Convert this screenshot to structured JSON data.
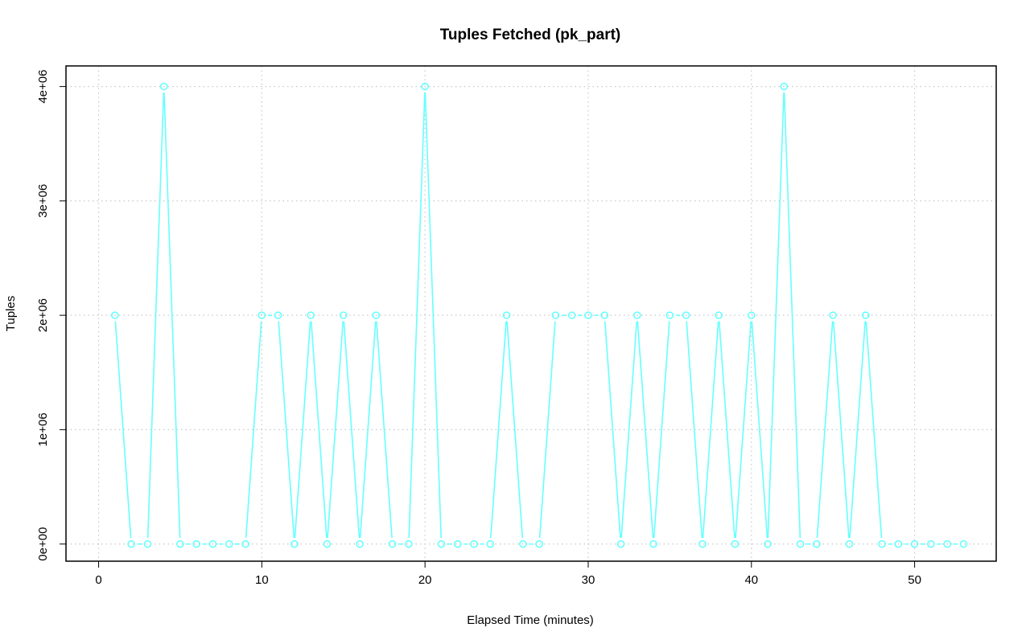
{
  "chart_data": {
    "type": "line",
    "title": "Tuples Fetched (pk_part)",
    "xlabel": "Elapsed Time (minutes)",
    "ylabel": "Tuples",
    "xlim": [
      -2,
      55
    ],
    "ylim": [
      -150000,
      4180000
    ],
    "x_ticks": [
      0,
      10,
      20,
      30,
      40,
      50
    ],
    "x_tick_labels": [
      "0",
      "10",
      "20",
      "30",
      "40",
      "50"
    ],
    "y_ticks": [
      0,
      1000000,
      2000000,
      3000000,
      4000000
    ],
    "y_tick_labels": [
      "0e+00",
      "1e+06",
      "2e+06",
      "3e+06",
      "4e+06"
    ],
    "grid": true,
    "legend": "none",
    "series": [
      {
        "color": "#66ffff",
        "marker": "open-circle",
        "x": [
          1,
          2,
          3,
          4,
          5,
          6,
          7,
          8,
          9,
          10,
          11,
          12,
          13,
          14,
          15,
          16,
          17,
          18,
          19,
          20,
          21,
          22,
          23,
          24,
          25,
          26,
          27,
          28,
          29,
          30,
          31,
          32,
          33,
          34,
          35,
          36,
          37,
          38,
          39,
          40,
          41,
          42,
          43,
          44,
          45,
          46,
          47,
          48,
          49,
          50,
          51,
          52,
          53
        ],
        "y": [
          2000000,
          0,
          0,
          4000000,
          0,
          0,
          0,
          0,
          0,
          2000000,
          2000000,
          0,
          2000000,
          0,
          2000000,
          0,
          2000000,
          0,
          0,
          4000000,
          0,
          0,
          0,
          0,
          2000000,
          0,
          0,
          2000000,
          2000000,
          2000000,
          2000000,
          0,
          2000000,
          0,
          2000000,
          2000000,
          0,
          2000000,
          0,
          2000000,
          0,
          4000000,
          0,
          0,
          2000000,
          0,
          2000000,
          0,
          0,
          0,
          0,
          0,
          0
        ]
      }
    ]
  }
}
